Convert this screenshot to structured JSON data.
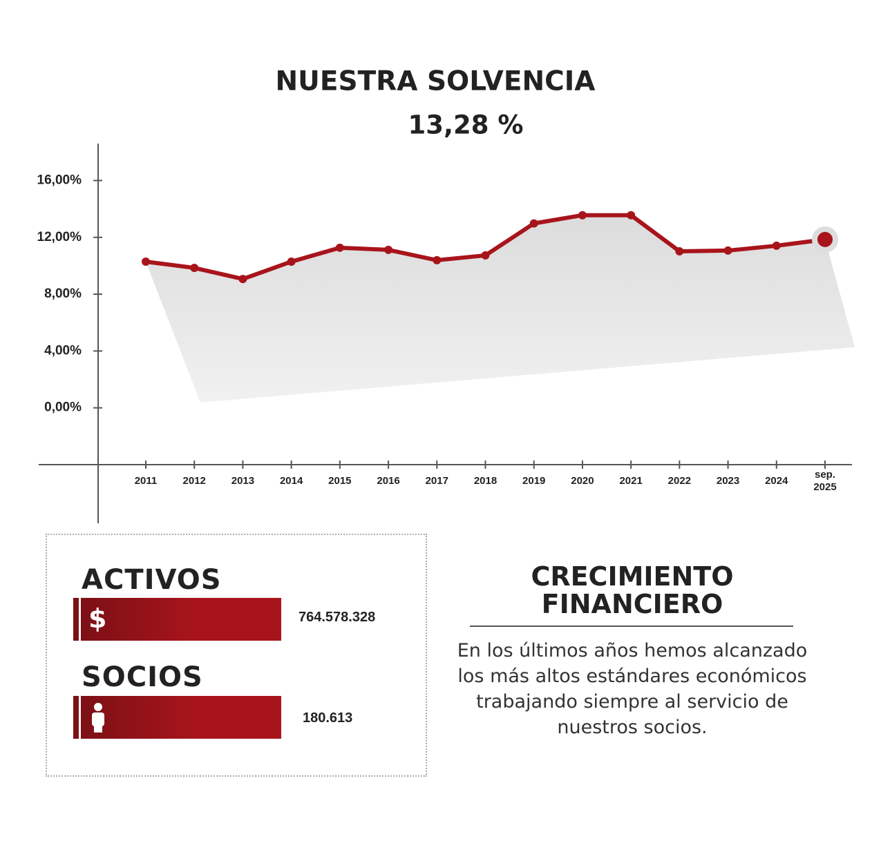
{
  "chart_data": {
    "type": "line",
    "title": "NUESTRA SOLVENCIA",
    "subtitle": "13,28 %",
    "categories": [
      "2011",
      "2012",
      "2013",
      "2014",
      "2015",
      "2016",
      "2017",
      "2018",
      "2019",
      "2020",
      "2021",
      "2022",
      "2023",
      "2024",
      "sep. 2025"
    ],
    "series": [
      {
        "name": "Solvencia",
        "color": "#a8141b",
        "values": [
          10.29,
          9.85,
          9.07,
          10.29,
          11.27,
          11.12,
          10.39,
          10.73,
          12.98,
          13.56,
          13.56,
          11.02,
          11.07,
          11.41,
          11.85
        ]
      }
    ],
    "ylim": [
      -4,
      18.6
    ],
    "yticks": [
      {
        "value": 0,
        "label": "0,00%"
      },
      {
        "value": 4,
        "label": "4,00%"
      },
      {
        "value": 8,
        "label": "8,00%"
      },
      {
        "value": 12,
        "label": "12,00%"
      },
      {
        "value": 16,
        "label": "16,00%"
      }
    ]
  },
  "panel": {
    "activos": {
      "label": "ACTIVOS",
      "icon": "$",
      "value": "764.578.328"
    },
    "socios": {
      "label": "SOCIOS",
      "value": "180.613"
    }
  },
  "growth": {
    "title": "CRECIMIENTO FINANCIERO",
    "text": "En los últimos años hemos alcanzado los más altos estándares económicos trabajando siempre al servicio de nuestros socios."
  }
}
